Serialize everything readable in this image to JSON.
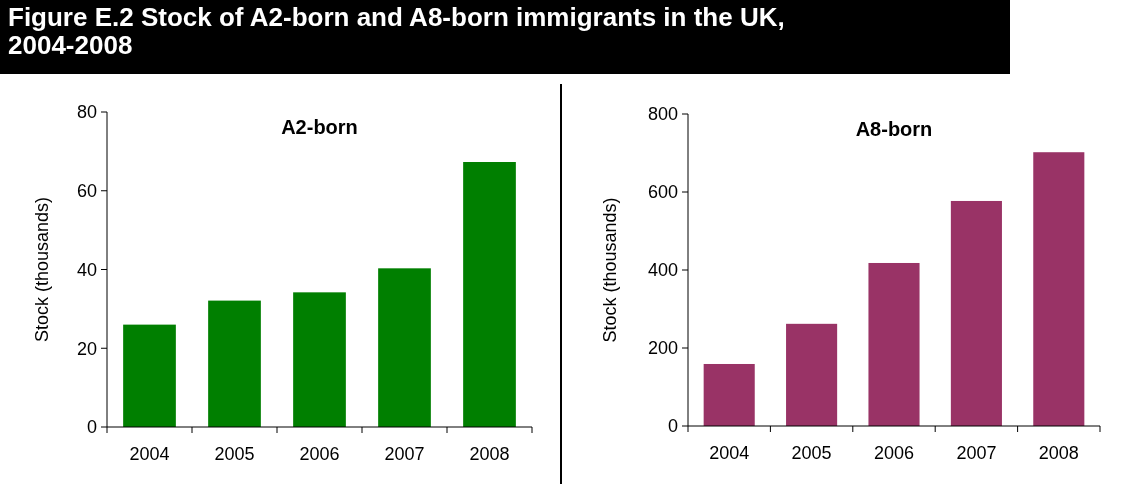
{
  "chart_data": [
    {
      "type": "bar",
      "title": "Figure E.2 Stock of A2-born and A8-born immigrants in the UK, 2004-2008",
      "subtitle": "A2-born",
      "ylabel": "Stock  (thousands)",
      "categories": [
        "2004",
        "2005",
        "2006",
        "2007",
        "2008"
      ],
      "values": [
        26.0,
        32.1,
        34.2,
        40.3,
        67.3
      ],
      "color": "#007f00",
      "ylim": [
        0,
        80
      ],
      "yticks": [
        0,
        20,
        40,
        60,
        80
      ],
      "grid": false
    },
    {
      "type": "bar",
      "title": "A8-born",
      "ylabel": "Stock  (thousands)",
      "categories": [
        "2004",
        "2005",
        "2006",
        "2007",
        "2008"
      ],
      "values": [
        159,
        262,
        418,
        577,
        702
      ],
      "color": "#993366",
      "ylim": [
        0,
        800
      ],
      "yticks": [
        0,
        200,
        400,
        600,
        800
      ],
      "grid": false
    }
  ]
}
